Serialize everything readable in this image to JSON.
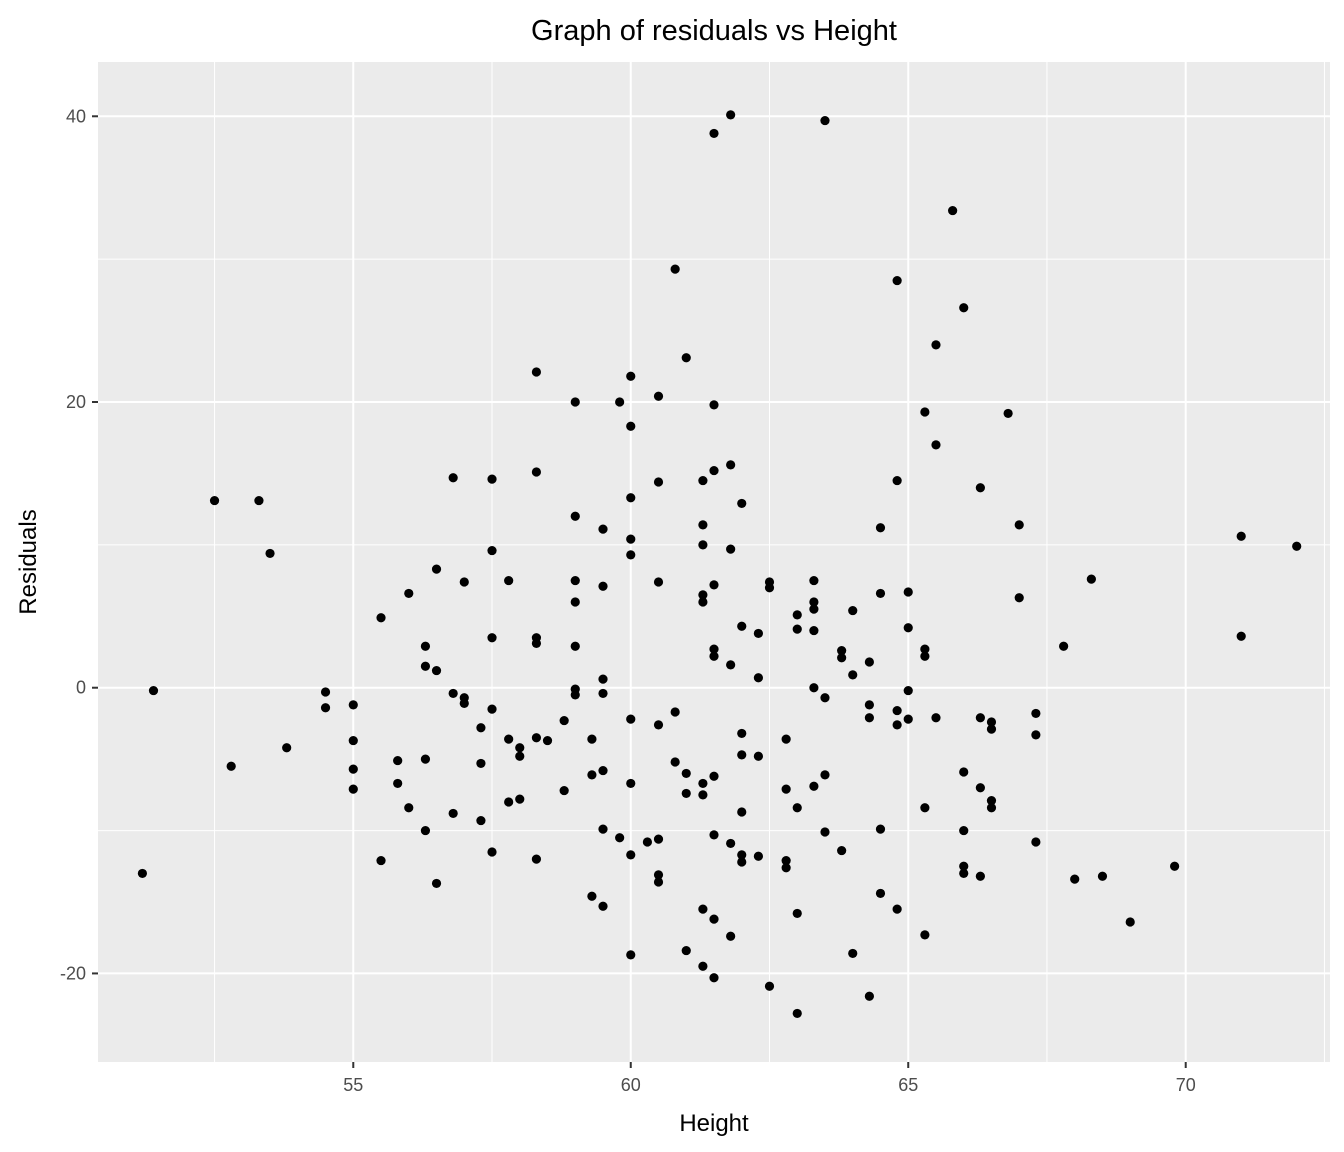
{
  "chart_data": {
    "type": "scatter",
    "title": "Graph of residuals vs Height",
    "xlabel": "Height",
    "ylabel": "Residuals",
    "xlim": [
      50.4,
      72.6
    ],
    "ylim": [
      -26.2,
      43.8
    ],
    "xticks": [
      55,
      60,
      65,
      70
    ],
    "yticks": [
      -20,
      0,
      20,
      40
    ],
    "xtick_labels": [
      "55",
      "60",
      "65",
      "70"
    ],
    "ytick_labels": [
      "-20",
      "0",
      "20",
      "40"
    ],
    "grid": true,
    "colors": {
      "panel": "#ebebeb",
      "grid": "#ffffff",
      "point": "#000000"
    },
    "points": [
      [
        51.2,
        -13.0
      ],
      [
        51.4,
        -0.2
      ],
      [
        52.5,
        13.1
      ],
      [
        52.8,
        -5.5
      ],
      [
        53.3,
        13.1
      ],
      [
        53.5,
        9.4
      ],
      [
        53.8,
        -4.2
      ],
      [
        54.5,
        -0.3
      ],
      [
        54.5,
        -1.4
      ],
      [
        55.0,
        -1.2
      ],
      [
        55.0,
        -3.7
      ],
      [
        55.0,
        -5.7
      ],
      [
        55.0,
        -7.1
      ],
      [
        55.5,
        4.9
      ],
      [
        55.5,
        -12.1
      ],
      [
        55.8,
        -5.1
      ],
      [
        55.8,
        -6.7
      ],
      [
        56.0,
        6.6
      ],
      [
        56.0,
        -8.4
      ],
      [
        56.3,
        2.9
      ],
      [
        56.3,
        1.5
      ],
      [
        56.3,
        -5.0
      ],
      [
        56.3,
        -10.0
      ],
      [
        56.5,
        8.3
      ],
      [
        56.5,
        1.2
      ],
      [
        56.5,
        -13.7
      ],
      [
        56.8,
        14.7
      ],
      [
        56.8,
        -0.4
      ],
      [
        56.8,
        -8.8
      ],
      [
        57.0,
        7.4
      ],
      [
        57.0,
        -0.7
      ],
      [
        57.0,
        -1.1
      ],
      [
        57.3,
        -2.8
      ],
      [
        57.3,
        -5.3
      ],
      [
        57.3,
        -9.3
      ],
      [
        57.5,
        14.6
      ],
      [
        57.5,
        9.6
      ],
      [
        57.5,
        3.5
      ],
      [
        57.5,
        -1.5
      ],
      [
        57.5,
        -11.5
      ],
      [
        57.8,
        7.5
      ],
      [
        57.8,
        -3.6
      ],
      [
        57.8,
        -8.0
      ],
      [
        58.0,
        -4.2
      ],
      [
        58.0,
        -4.8
      ],
      [
        58.0,
        -7.8
      ],
      [
        58.3,
        22.1
      ],
      [
        58.3,
        15.1
      ],
      [
        58.3,
        3.5
      ],
      [
        58.3,
        3.1
      ],
      [
        58.3,
        -3.5
      ],
      [
        58.3,
        -12.0
      ],
      [
        58.5,
        -3.7
      ],
      [
        58.8,
        -2.3
      ],
      [
        58.8,
        -7.2
      ],
      [
        59.0,
        20.0
      ],
      [
        59.0,
        12.0
      ],
      [
        59.0,
        7.5
      ],
      [
        59.0,
        6.0
      ],
      [
        59.0,
        2.9
      ],
      [
        59.0,
        -0.1
      ],
      [
        59.0,
        -0.5
      ],
      [
        59.3,
        -3.6
      ],
      [
        59.3,
        -6.1
      ],
      [
        59.3,
        -14.6
      ],
      [
        59.5,
        11.1
      ],
      [
        59.5,
        7.1
      ],
      [
        59.5,
        0.6
      ],
      [
        59.5,
        -0.4
      ],
      [
        59.5,
        -5.8
      ],
      [
        59.5,
        -9.9
      ],
      [
        59.5,
        -15.3
      ],
      [
        59.8,
        20.0
      ],
      [
        59.8,
        -10.5
      ],
      [
        60.0,
        21.8
      ],
      [
        60.0,
        18.3
      ],
      [
        60.0,
        13.3
      ],
      [
        60.0,
        10.4
      ],
      [
        60.0,
        9.3
      ],
      [
        60.0,
        -2.2
      ],
      [
        60.0,
        -6.7
      ],
      [
        60.0,
        -11.7
      ],
      [
        60.0,
        -18.7
      ],
      [
        60.3,
        -10.8
      ],
      [
        60.5,
        20.4
      ],
      [
        60.5,
        14.4
      ],
      [
        60.5,
        7.4
      ],
      [
        60.5,
        -2.6
      ],
      [
        60.5,
        -10.6
      ],
      [
        60.5,
        -13.1
      ],
      [
        60.5,
        -13.6
      ],
      [
        60.8,
        29.3
      ],
      [
        60.8,
        -1.7
      ],
      [
        60.8,
        -5.2
      ],
      [
        61.0,
        23.1
      ],
      [
        61.0,
        -6.0
      ],
      [
        61.0,
        -7.4
      ],
      [
        61.0,
        -18.4
      ],
      [
        61.3,
        14.5
      ],
      [
        61.3,
        11.4
      ],
      [
        61.3,
        10.0
      ],
      [
        61.3,
        6.5
      ],
      [
        61.3,
        6.0
      ],
      [
        61.3,
        -6.7
      ],
      [
        61.3,
        -7.5
      ],
      [
        61.3,
        -15.5
      ],
      [
        61.3,
        -19.5
      ],
      [
        61.5,
        38.8
      ],
      [
        61.5,
        19.8
      ],
      [
        61.5,
        15.2
      ],
      [
        61.5,
        7.2
      ],
      [
        61.5,
        2.7
      ],
      [
        61.5,
        2.2
      ],
      [
        61.5,
        -6.2
      ],
      [
        61.5,
        -10.3
      ],
      [
        61.5,
        -16.2
      ],
      [
        61.5,
        -20.3
      ],
      [
        61.8,
        40.1
      ],
      [
        61.8,
        15.6
      ],
      [
        61.8,
        9.7
      ],
      [
        61.8,
        1.6
      ],
      [
        61.8,
        -10.9
      ],
      [
        61.8,
        -17.4
      ],
      [
        62.0,
        12.9
      ],
      [
        62.0,
        4.3
      ],
      [
        62.0,
        -3.2
      ],
      [
        62.0,
        -4.7
      ],
      [
        62.0,
        -8.7
      ],
      [
        62.0,
        -11.7
      ],
      [
        62.0,
        -12.2
      ],
      [
        62.3,
        3.8
      ],
      [
        62.3,
        0.7
      ],
      [
        62.3,
        -4.8
      ],
      [
        62.3,
        -11.8
      ],
      [
        62.5,
        7.4
      ],
      [
        62.5,
        7.0
      ],
      [
        62.5,
        -20.9
      ],
      [
        62.8,
        -3.6
      ],
      [
        62.8,
        -7.1
      ],
      [
        62.8,
        -12.1
      ],
      [
        62.8,
        -12.6
      ],
      [
        63.0,
        5.1
      ],
      [
        63.0,
        4.1
      ],
      [
        63.0,
        -8.4
      ],
      [
        63.0,
        -15.8
      ],
      [
        63.0,
        -22.8
      ],
      [
        63.3,
        7.5
      ],
      [
        63.3,
        6.0
      ],
      [
        63.3,
        5.5
      ],
      [
        63.3,
        4.0
      ],
      [
        63.3,
        0.0
      ],
      [
        63.3,
        -6.9
      ],
      [
        63.5,
        39.7
      ],
      [
        63.5,
        -0.7
      ],
      [
        63.5,
        -6.1
      ],
      [
        63.5,
        -10.1
      ],
      [
        63.8,
        2.6
      ],
      [
        63.8,
        2.1
      ],
      [
        63.8,
        -11.4
      ],
      [
        64.0,
        5.4
      ],
      [
        64.0,
        0.9
      ],
      [
        64.0,
        -18.6
      ],
      [
        64.3,
        1.8
      ],
      [
        64.3,
        -1.2
      ],
      [
        64.3,
        -2.1
      ],
      [
        64.3,
        -21.6
      ],
      [
        64.5,
        11.2
      ],
      [
        64.5,
        6.6
      ],
      [
        64.5,
        -9.9
      ],
      [
        64.5,
        -14.4
      ],
      [
        64.8,
        28.5
      ],
      [
        64.8,
        14.5
      ],
      [
        64.8,
        -1.6
      ],
      [
        64.8,
        -2.6
      ],
      [
        64.8,
        -15.5
      ],
      [
        65.0,
        6.7
      ],
      [
        65.0,
        4.2
      ],
      [
        65.0,
        -0.2
      ],
      [
        65.0,
        -2.2
      ],
      [
        65.3,
        19.3
      ],
      [
        65.3,
        2.7
      ],
      [
        65.3,
        2.2
      ],
      [
        65.3,
        -8.4
      ],
      [
        65.3,
        -17.3
      ],
      [
        65.5,
        24.0
      ],
      [
        65.5,
        17.0
      ],
      [
        65.5,
        -2.1
      ],
      [
        65.8,
        33.4
      ],
      [
        66.0,
        26.6
      ],
      [
        66.0,
        -5.9
      ],
      [
        66.0,
        -10.0
      ],
      [
        66.0,
        -12.5
      ],
      [
        66.0,
        -13.0
      ],
      [
        66.3,
        14.0
      ],
      [
        66.3,
        -2.1
      ],
      [
        66.3,
        -7.0
      ],
      [
        66.3,
        -13.2
      ],
      [
        66.5,
        -2.4
      ],
      [
        66.5,
        -2.9
      ],
      [
        66.5,
        -7.9
      ],
      [
        66.5,
        -8.4
      ],
      [
        66.8,
        19.2
      ],
      [
        67.0,
        11.4
      ],
      [
        67.0,
        6.3
      ],
      [
        67.3,
        -1.8
      ],
      [
        67.3,
        -3.3
      ],
      [
        67.3,
        -10.8
      ],
      [
        67.8,
        2.9
      ],
      [
        68.0,
        -13.4
      ],
      [
        68.3,
        7.6
      ],
      [
        68.5,
        -13.2
      ],
      [
        69.0,
        -16.4
      ],
      [
        69.8,
        -12.5
      ],
      [
        71.0,
        10.6
      ],
      [
        71.0,
        3.6
      ],
      [
        72.0,
        9.9
      ]
    ]
  }
}
